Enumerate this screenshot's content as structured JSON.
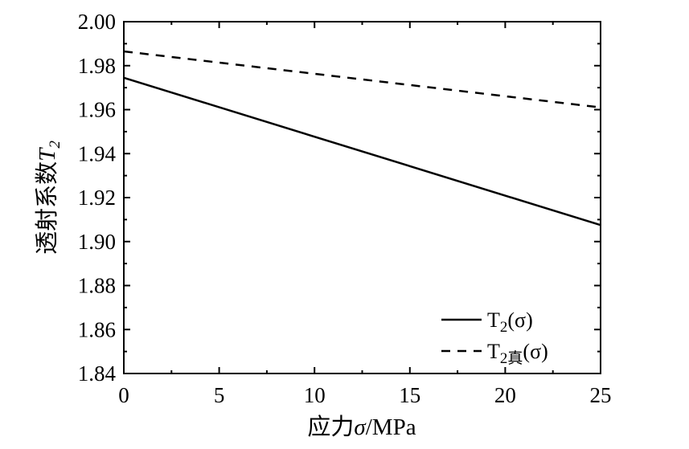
{
  "chart_data": {
    "type": "line",
    "title": "",
    "xlabel": "应力σ/MPa",
    "ylabel": "透射系数T2",
    "xlim": [
      0,
      25
    ],
    "ylim": [
      1.84,
      2.0
    ],
    "x_ticks": [
      "0",
      "5",
      "10",
      "15",
      "20",
      "25"
    ],
    "y_ticks": [
      "1.84",
      "1.86",
      "1.88",
      "1.90",
      "1.92",
      "1.94",
      "1.96",
      "1.98",
      "2.00"
    ],
    "grid": false,
    "legend_position": "bottom-right",
    "series": [
      {
        "name": "T2(σ)",
        "style": "solid",
        "x": [
          0,
          25
        ],
        "y": [
          1.9745,
          1.9075
        ]
      },
      {
        "name": "T2真(σ)",
        "style": "dashed",
        "x": [
          0,
          25
        ],
        "y": [
          1.9865,
          1.961
        ]
      }
    ]
  },
  "axis_titles": {
    "x_prefix": "应力",
    "x_symbol": "σ",
    "x_suffix": "/MPa",
    "y_prefix": "透射系数",
    "y_symbol": "T",
    "y_sub": "2"
  },
  "legend": [
    {
      "base": "T",
      "sub": "2",
      "suffix": "(σ)"
    },
    {
      "base": "T",
      "sub": "2真",
      "suffix": "(σ)"
    }
  ],
  "colors": {
    "line": "#000000",
    "background": "#ffffff"
  }
}
